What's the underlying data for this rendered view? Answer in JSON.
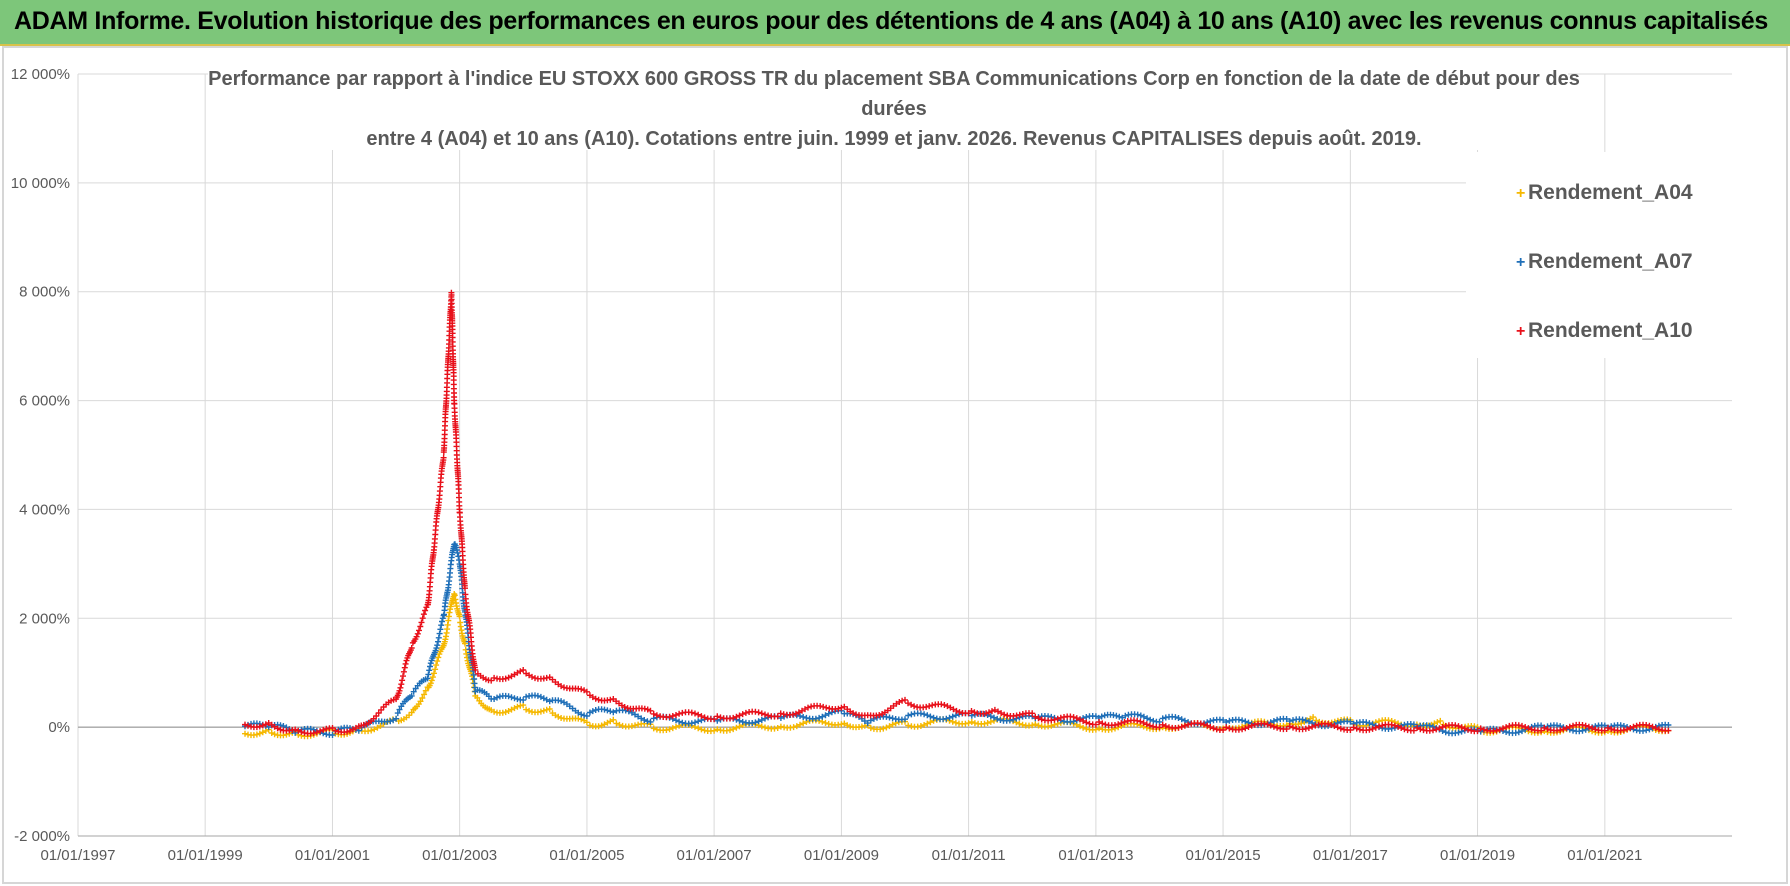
{
  "header": {
    "banner_title": "ADAM Informe. Evolution historique des performances en euros pour des détentions de 4 ans (A04) à 10 ans (A10) avec les revenus connus capitalisés"
  },
  "chart_data": {
    "type": "scatter",
    "title_lines": [
      "Performance par rapport à l'indice EU STOXX 600 GROSS TR  du placement SBA Communications Corp en fonction de la date de début pour des",
      "durées",
      "entre 4 (A04) et 10 ans (A10).  Cotations entre juin. 1999 et janv. 2026. Revenus CAPITALISES depuis août. 2019."
    ],
    "xlabel": "",
    "ylabel": "",
    "x_ticks": [
      "01/01/1997",
      "01/01/1999",
      "01/01/2001",
      "01/01/2003",
      "01/01/2005",
      "01/01/2007",
      "01/01/2009",
      "01/01/2011",
      "01/01/2013",
      "01/01/2015",
      "01/01/2017",
      "01/01/2019",
      "01/01/2021"
    ],
    "xlim": [
      "1997-01-01",
      "2023-01-01"
    ],
    "y_ticks": [
      "-2 000%",
      "0%",
      "2 000%",
      "4 000%",
      "6 000%",
      "8 000%",
      "10 000%",
      "12 000%"
    ],
    "ylim": [
      -2000,
      12000
    ],
    "grid": true,
    "legend_position": "right",
    "marker": "+",
    "series": [
      {
        "name": "Rendement_A04",
        "color": "#f5b800",
        "points": [
          [
            "1999-08-01",
            -100
          ],
          [
            "2000-01-01",
            -80
          ],
          [
            "2000-06-01",
            -120
          ],
          [
            "2001-01-01",
            -100
          ],
          [
            "2001-06-01",
            -60
          ],
          [
            "2002-01-01",
            100
          ],
          [
            "2002-04-01",
            300
          ],
          [
            "2002-07-01",
            700
          ],
          [
            "2002-10-01",
            1500
          ],
          [
            "2002-12-01",
            2500
          ],
          [
            "2003-01-01",
            2000
          ],
          [
            "2003-02-01",
            1500
          ],
          [
            "2003-04-01",
            600
          ],
          [
            "2003-07-01",
            300
          ],
          [
            "2004-01-01",
            350
          ],
          [
            "2004-06-01",
            300
          ],
          [
            "2005-01-01",
            50
          ],
          [
            "2005-06-01",
            100
          ],
          [
            "2006-01-01",
            0
          ],
          [
            "2007-01-01",
            -20
          ],
          [
            "2008-01-01",
            30
          ],
          [
            "2009-01-01",
            100
          ],
          [
            "2009-06-01",
            0
          ],
          [
            "2010-01-01",
            50
          ],
          [
            "2011-01-01",
            120
          ],
          [
            "2012-01-01",
            80
          ],
          [
            "2013-01-01",
            0
          ],
          [
            "2014-01-01",
            20
          ],
          [
            "2015-01-01",
            20
          ],
          [
            "2016-01-01",
            80
          ],
          [
            "2016-06-01",
            150
          ],
          [
            "2017-01-01",
            80
          ],
          [
            "2018-01-01",
            70
          ],
          [
            "2018-06-01",
            80
          ],
          [
            "2019-01-01",
            -50
          ],
          [
            "2020-01-01",
            -50
          ],
          [
            "2021-01-01",
            -50
          ],
          [
            "2022-01-01",
            -20
          ]
        ]
      },
      {
        "name": "Rendement_A07",
        "color": "#1f6fb8",
        "points": [
          [
            "1999-08-01",
            0
          ],
          [
            "2000-01-01",
            30
          ],
          [
            "2000-06-01",
            -80
          ],
          [
            "2001-01-01",
            -90
          ],
          [
            "2001-06-01",
            -40
          ],
          [
            "2002-01-01",
            200
          ],
          [
            "2002-04-01",
            600
          ],
          [
            "2002-07-01",
            900
          ],
          [
            "2002-10-01",
            2000
          ],
          [
            "2002-12-01",
            3400
          ],
          [
            "2003-01-01",
            3000
          ],
          [
            "2003-02-01",
            2100
          ],
          [
            "2003-04-01",
            700
          ],
          [
            "2003-07-01",
            500
          ],
          [
            "2004-01-01",
            550
          ],
          [
            "2004-06-01",
            500
          ],
          [
            "2005-01-01",
            250
          ],
          [
            "2005-06-01",
            300
          ],
          [
            "2006-01-01",
            150
          ],
          [
            "2007-01-01",
            100
          ],
          [
            "2008-01-01",
            150
          ],
          [
            "2009-01-01",
            250
          ],
          [
            "2009-06-01",
            100
          ],
          [
            "2010-01-01",
            200
          ],
          [
            "2011-01-01",
            200
          ],
          [
            "2012-01-01",
            150
          ],
          [
            "2013-01-01",
            150
          ],
          [
            "2013-06-01",
            200
          ],
          [
            "2014-01-01",
            150
          ],
          [
            "2015-01-01",
            80
          ],
          [
            "2016-01-01",
            100
          ],
          [
            "2017-01-01",
            50
          ],
          [
            "2018-01-01",
            0
          ],
          [
            "2019-01-01",
            -100
          ],
          [
            "2020-01-01",
            -20
          ],
          [
            "2021-01-01",
            -20
          ],
          [
            "2022-01-01",
            -10
          ]
        ]
      },
      {
        "name": "Rendement_A10",
        "color": "#e8101a",
        "points": [
          [
            "1999-08-01",
            50
          ],
          [
            "2000-01-01",
            60
          ],
          [
            "2000-06-01",
            -60
          ],
          [
            "2001-01-01",
            -70
          ],
          [
            "2001-06-01",
            0
          ],
          [
            "2002-01-01",
            500
          ],
          [
            "2002-04-01",
            1500
          ],
          [
            "2002-07-01",
            2200
          ],
          [
            "2002-10-01",
            5000
          ],
          [
            "2002-11-15",
            8000
          ],
          [
            "2002-12-01",
            6000
          ],
          [
            "2003-01-01",
            4000
          ],
          [
            "2003-02-01",
            2500
          ],
          [
            "2003-04-01",
            1000
          ],
          [
            "2003-07-01",
            900
          ],
          [
            "2004-01-01",
            1000
          ],
          [
            "2004-06-01",
            900
          ],
          [
            "2005-01-01",
            600
          ],
          [
            "2005-06-01",
            500
          ],
          [
            "2006-01-01",
            250
          ],
          [
            "2007-01-01",
            200
          ],
          [
            "2008-01-01",
            250
          ],
          [
            "2009-01-01",
            400
          ],
          [
            "2009-06-01",
            200
          ],
          [
            "2010-01-01",
            450
          ],
          [
            "2011-01-01",
            300
          ],
          [
            "2011-06-01",
            300
          ],
          [
            "2012-01-01",
            200
          ],
          [
            "2013-01-01",
            100
          ],
          [
            "2014-01-01",
            50
          ],
          [
            "2015-01-01",
            0
          ],
          [
            "2016-01-01",
            20
          ],
          [
            "2017-01-01",
            0
          ],
          [
            "2018-01-01",
            -10
          ],
          [
            "2019-01-01",
            -20
          ],
          [
            "2020-01-01",
            -10
          ],
          [
            "2021-01-01",
            -10
          ],
          [
            "2022-01-01",
            -10
          ]
        ]
      }
    ]
  }
}
